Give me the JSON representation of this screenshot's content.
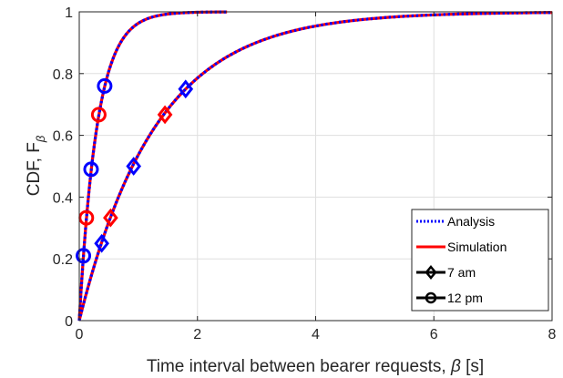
{
  "chart_data": {
    "type": "line",
    "title": "",
    "xlabel_text": "Time interval between bearer requests, ",
    "xlabel_symbol": "β",
    "xlabel_unit": " [s]",
    "ylabel_text": "CDF, F",
    "ylabel_sub": "β",
    "xlim": [
      0,
      8
    ],
    "ylim": [
      0,
      1
    ],
    "xticks": [
      0,
      2,
      4,
      6,
      8
    ],
    "yticks": [
      0,
      0.2,
      0.4,
      0.6,
      0.8,
      1
    ],
    "xtick_labels": [
      "0",
      "2",
      "4",
      "6",
      "8"
    ],
    "ytick_labels": [
      "0",
      "0.2",
      "0.4",
      "0.6",
      "0.8",
      "1"
    ],
    "grid": true,
    "legend_position": "bottom-right",
    "legend": [
      {
        "label": "Analysis",
        "style": "dotted",
        "color": "#0000ff"
      },
      {
        "label": "Simulation",
        "style": "solid",
        "color": "#ff0000"
      },
      {
        "label": "7 am",
        "style": "diamond-marker",
        "color": "#000000"
      },
      {
        "label": "12 pm",
        "style": "circle-marker",
        "color": "#000000"
      }
    ],
    "curves": [
      {
        "case": "12 pm",
        "rate": 3.3,
        "x_max": 2.5
      },
      {
        "case": "7 am",
        "rate": 0.77,
        "x_max": 8
      }
    ],
    "markers": [
      {
        "case": "12 pm",
        "shape": "circle",
        "color": "#ff0000",
        "points": [
          [
            0.12,
            0.333
          ],
          [
            0.33,
            0.667
          ]
        ]
      },
      {
        "case": "12 pm",
        "shape": "circle",
        "color": "#0000ff",
        "points": [
          [
            0.07,
            0.21
          ],
          [
            0.2,
            0.49
          ],
          [
            0.43,
            0.76
          ]
        ]
      },
      {
        "case": "7 am",
        "shape": "diamond",
        "color": "#ff0000",
        "points": [
          [
            0.53,
            0.333
          ],
          [
            1.45,
            0.667
          ]
        ]
      },
      {
        "case": "7 am",
        "shape": "diamond",
        "color": "#0000ff",
        "points": [
          [
            0.38,
            0.25
          ],
          [
            0.92,
            0.5
          ],
          [
            1.8,
            0.75
          ]
        ]
      }
    ]
  }
}
